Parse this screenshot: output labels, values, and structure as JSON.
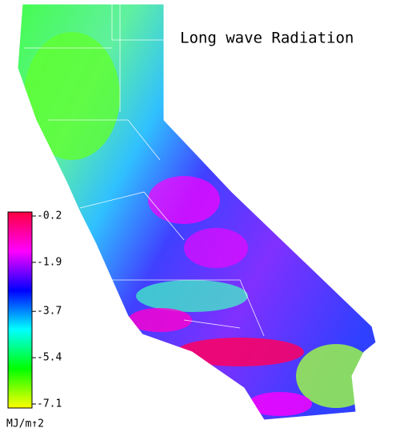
{
  "title": "Long wave Radiation",
  "colorbar": {
    "lim": [
      -7.1,
      -0.2
    ],
    "ticks": [
      -0.2,
      -1.9,
      -3.7,
      -5.4,
      -7.1
    ],
    "colors": [
      "#ffff00",
      "#00ff00",
      "#00ffff",
      "#0000ff",
      "#ff00ff",
      "#ff0040"
    ],
    "unit": "MJ/m↑2"
  }
}
